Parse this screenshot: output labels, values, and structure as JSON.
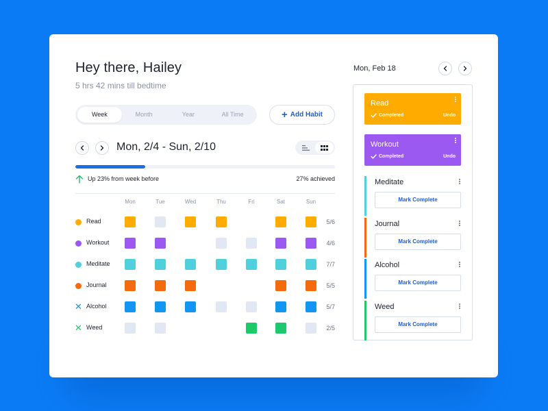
{
  "header": {
    "greeting": "Hey there, Hailey",
    "subtext": "5 hrs 42 mins till bedtime"
  },
  "period_tabs": [
    {
      "label": "Week",
      "active": true
    },
    {
      "label": "Month",
      "active": false
    },
    {
      "label": "Year",
      "active": false
    },
    {
      "label": "All Time",
      "active": false
    }
  ],
  "add_habit_label": "Add Habit",
  "date_range": "Mon, 2/4 - Sun, 2/10",
  "view_modes": [
    {
      "icon": "list-view-icon",
      "active": false
    },
    {
      "icon": "grid-view-icon",
      "active": true
    }
  ],
  "progress": {
    "fraction": 0.27,
    "trend_text": "Up 23% from week before",
    "achieved_text": "27% achieved",
    "trend_icon": "arrow-up-icon",
    "trend_color": "#2bb673"
  },
  "days": [
    "Mon",
    "Tue",
    "Wed",
    "Thu",
    "Fri",
    "Sat",
    "Sun"
  ],
  "habits": [
    {
      "name": "Read",
      "color": "#ffab00",
      "marker": "dot",
      "count": "5/6",
      "days": [
        "done",
        "empty",
        "done",
        "done",
        "none",
        "done",
        "done"
      ]
    },
    {
      "name": "Workout",
      "color": "#9b59f2",
      "marker": "dot",
      "count": "4/6",
      "days": [
        "done",
        "done",
        "none",
        "empty",
        "empty",
        "done",
        "done"
      ]
    },
    {
      "name": "Meditate",
      "color": "#4fd0dc",
      "marker": "dot",
      "count": "7/7",
      "days": [
        "done",
        "done",
        "done",
        "done",
        "done",
        "done",
        "done"
      ]
    },
    {
      "name": "Journal",
      "color": "#f46b0d",
      "marker": "dot",
      "count": "5/5",
      "days": [
        "done",
        "done",
        "done",
        "none",
        "none",
        "done",
        "done"
      ]
    },
    {
      "name": "Alcohol",
      "color": "#1296f3",
      "marker": "x",
      "count": "5/7",
      "days": [
        "done",
        "done",
        "done",
        "empty",
        "empty",
        "done",
        "done"
      ]
    },
    {
      "name": "Weed",
      "color": "#1fc96b",
      "marker": "x",
      "count": "2/5",
      "days": [
        "empty",
        "empty",
        "none",
        "none",
        "done",
        "done",
        "empty"
      ]
    }
  ],
  "today": {
    "date": "Mon, Feb 18",
    "completed": [
      {
        "name": "Read",
        "status": "Completed",
        "undo": "Undo",
        "color": "#ffab00"
      },
      {
        "name": "Workout",
        "status": "Completed",
        "undo": "Undo",
        "color": "#9b59f2"
      }
    ],
    "pending": [
      {
        "name": "Meditate",
        "button": "Mark Complete",
        "color": "#4fd0dc"
      },
      {
        "name": "Journal",
        "button": "Mark Complete",
        "color": "#f46b0d"
      },
      {
        "name": "Alcohol",
        "button": "Mark Complete",
        "color": "#1296f3"
      },
      {
        "name": "Weed",
        "button": "Mark Complete",
        "color": "#1fc96b"
      }
    ]
  },
  "colors": {
    "background": "#0b7bf5",
    "accent": "#1f5fd6",
    "progress_fill": "#1f6fe0",
    "empty_cell": "#e2e8f3"
  }
}
